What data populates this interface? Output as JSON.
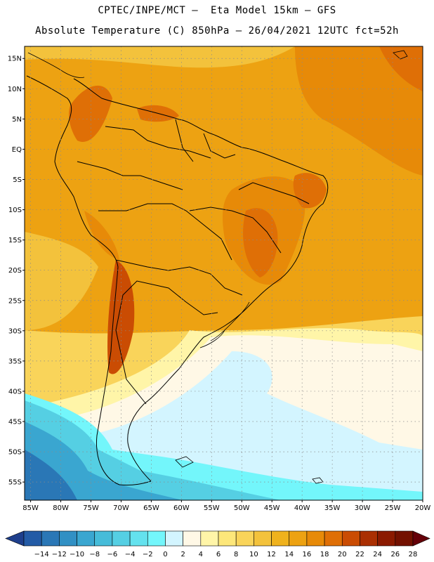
{
  "header": {
    "line1": "CPTEC/INPE/MCT –  Eta Model 15km – GFS",
    "line2": "Absolute Temperature (C) 850hPa – 26/04/2021 12UTC fct=52h"
  },
  "axes": {
    "lat_labels": [
      "15N",
      "10N",
      "5N",
      "EQ",
      "5S",
      "10S",
      "15S",
      "20S",
      "25S",
      "30S",
      "35S",
      "40S",
      "45S",
      "50S",
      "55S"
    ],
    "lon_labels": [
      "85W",
      "80W",
      "75W",
      "70W",
      "65W",
      "60W",
      "55W",
      "50W",
      "45W",
      "40W",
      "35W",
      "30W",
      "25W",
      "20W"
    ]
  },
  "colorbar": {
    "labels": [
      "-14",
      "-12",
      "-10",
      "-8",
      "-6",
      "-4",
      "-2",
      "0",
      "2",
      "4",
      "6",
      "8",
      "10",
      "12",
      "14",
      "16",
      "18",
      "20",
      "22",
      "24",
      "26",
      "28"
    ],
    "colors": [
      "#1e3f8c",
      "#235ba6",
      "#2a77b6",
      "#3190c4",
      "#3aa6d0",
      "#46bcd9",
      "#55cfe3",
      "#64e2ee",
      "#73f6fb",
      "#d3f5ff",
      "#fff8e6",
      "#fff5a8",
      "#fde77a",
      "#f9d45a",
      "#f3c23c",
      "#efb21d",
      "#eda212",
      "#e78a08",
      "#df6f06",
      "#ca4c03",
      "#aa2f02",
      "#8b1a00",
      "#731100",
      "#650008"
    ]
  },
  "map": {
    "projection": "lat-lon",
    "lat_range": [
      -58,
      17
    ],
    "lon_range": [
      -86,
      -20
    ],
    "background_color": "#eda212"
  }
}
